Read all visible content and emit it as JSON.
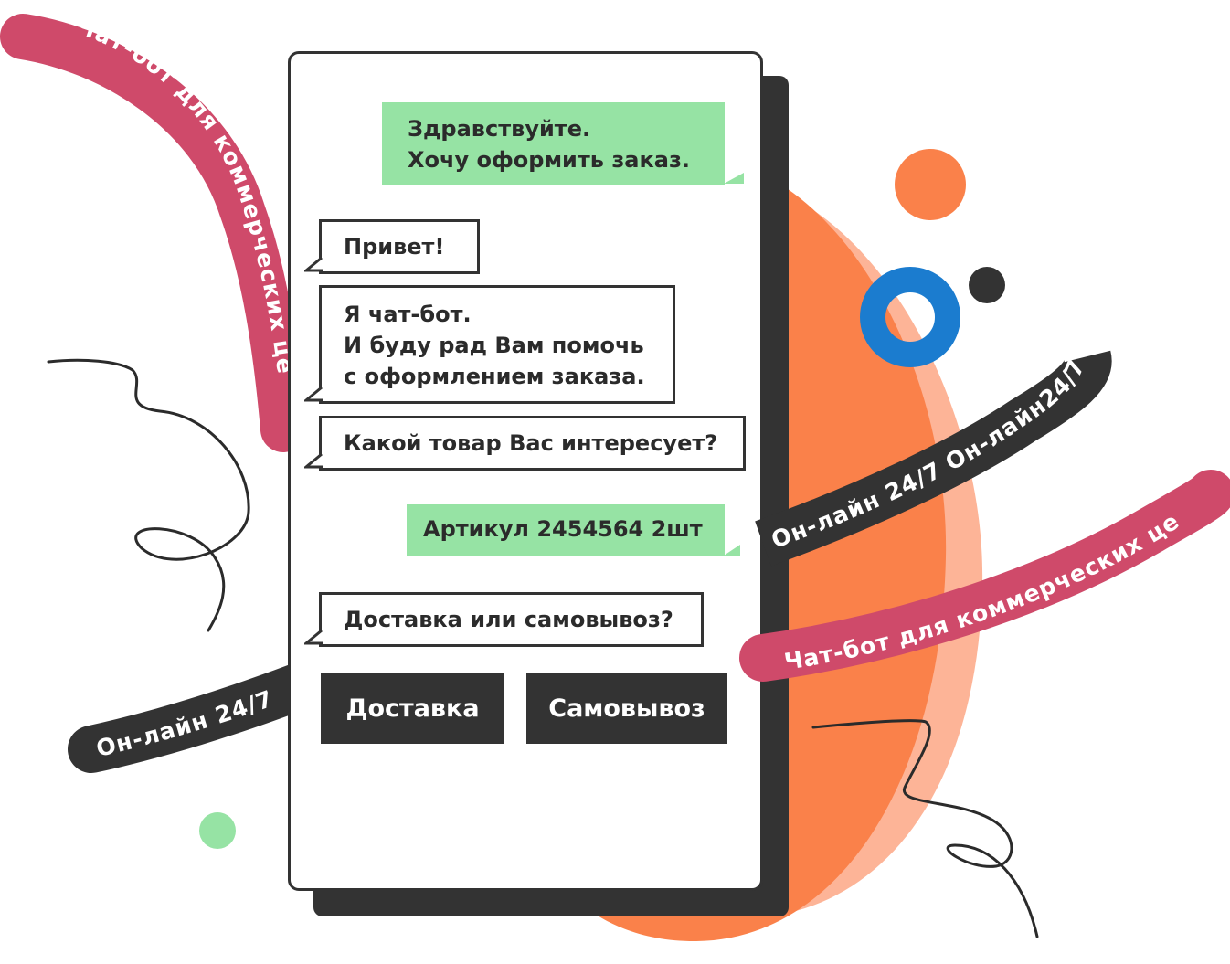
{
  "ribbons": {
    "left_top": "Чат-бот для коммерческих це",
    "right_dark": "Он-лайн 24/7 Он-лайн24/7",
    "right_red": "Чат-бот для коммерческих це",
    "left_dark": "Он-лайн 24/7"
  },
  "chat": {
    "user_greeting": {
      "line1": "Здравствуйте.",
      "line2": "Хочу оформить заказ."
    },
    "bot_hello": "Привет!",
    "bot_intro": {
      "line1": "Я чат-бот.",
      "line2": "И буду рад Вам помочь",
      "line3": "с оформлением заказа."
    },
    "bot_question": "Какой товар Вас интересует?",
    "user_article": "Артикул 2454564 2шт",
    "bot_delivery_question": "Доставка или самовывоз?"
  },
  "buttons": {
    "delivery": "Доставка",
    "pickup": "Самовывоз"
  },
  "colors": {
    "user_bubble": "#96e3a4",
    "dark": "#333333",
    "ribbon_red": "#cf4a6a",
    "orange": "#fa814a",
    "peach": "#fdb497",
    "blue_ring": "#1b7ccf",
    "green_dot": "#96e3a4"
  }
}
